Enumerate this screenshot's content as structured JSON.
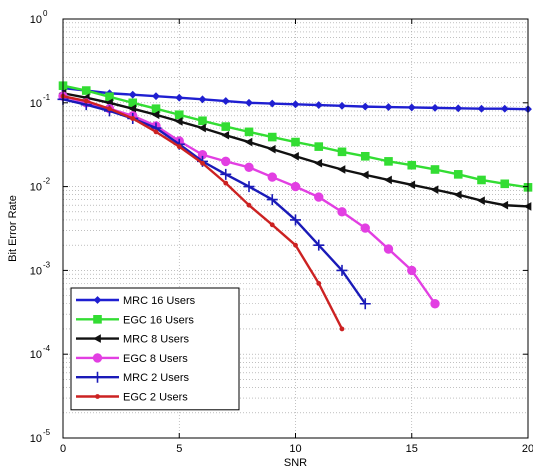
{
  "chart_data": {
    "type": "line",
    "xlabel": "SNR",
    "ylabel": "Bit Error Rate",
    "xlim": [
      0,
      20
    ],
    "ylim": [
      1e-05,
      1
    ],
    "yscale": "log",
    "grid": true,
    "minor_grid": true,
    "legend_position": "bottom-left",
    "x_ticks": [
      "0",
      "5",
      "10",
      "15",
      "20"
    ],
    "y_ticks": [
      {
        "value": 1,
        "base": "10",
        "exp": "0"
      },
      {
        "value": 0.1,
        "base": "10",
        "exp": "-1"
      },
      {
        "value": 0.01,
        "base": "10",
        "exp": "-2"
      },
      {
        "value": 0.001,
        "base": "10",
        "exp": "-3"
      },
      {
        "value": 0.0001,
        "base": "10",
        "exp": "-4"
      },
      {
        "value": 1e-05,
        "base": "10",
        "exp": "-5"
      }
    ],
    "series": [
      {
        "name": "MRC 16 Users",
        "color": "#1f1fd1",
        "marker": "diamond",
        "x": [
          0,
          1,
          2,
          3,
          4,
          5,
          6,
          7,
          8,
          9,
          10,
          11,
          12,
          13,
          14,
          15,
          16,
          17,
          18,
          19,
          20
        ],
        "y": [
          0.15,
          0.14,
          0.13,
          0.125,
          0.12,
          0.115,
          0.11,
          0.105,
          0.1,
          0.098,
          0.096,
          0.094,
          0.092,
          0.09,
          0.089,
          0.088,
          0.087,
          0.086,
          0.085,
          0.085,
          0.084
        ]
      },
      {
        "name": "EGC 16 Users",
        "color": "#33dd33",
        "marker": "square",
        "x": [
          0,
          1,
          2,
          3,
          4,
          5,
          6,
          7,
          8,
          9,
          10,
          11,
          12,
          13,
          14,
          15,
          16,
          17,
          18,
          19,
          20
        ],
        "y": [
          0.16,
          0.14,
          0.118,
          0.1,
          0.085,
          0.072,
          0.061,
          0.052,
          0.045,
          0.039,
          0.034,
          0.03,
          0.026,
          0.023,
          0.02,
          0.018,
          0.016,
          0.014,
          0.012,
          0.0108,
          0.0098
        ]
      },
      {
        "name": "MRC 8 Users",
        "color": "#111111",
        "marker": "triangle-left",
        "x": [
          0,
          1,
          2,
          3,
          4,
          5,
          6,
          7,
          8,
          9,
          10,
          11,
          12,
          13,
          14,
          15,
          16,
          17,
          18,
          19,
          20
        ],
        "y": [
          0.13,
          0.115,
          0.1,
          0.085,
          0.072,
          0.06,
          0.05,
          0.041,
          0.034,
          0.028,
          0.023,
          0.019,
          0.016,
          0.0138,
          0.012,
          0.0105,
          0.0092,
          0.008,
          0.0068,
          0.006,
          0.0058
        ]
      },
      {
        "name": "EGC 8 Users",
        "color": "#e23fe2",
        "marker": "circle",
        "x": [
          0,
          1,
          2,
          3,
          4,
          5,
          6,
          7,
          8,
          9,
          10,
          11,
          12,
          13,
          14,
          15,
          16
        ],
        "y": [
          0.12,
          0.1,
          0.085,
          0.07,
          0.053,
          0.035,
          0.024,
          0.02,
          0.017,
          0.013,
          0.01,
          0.0075,
          0.005,
          0.0032,
          0.0018,
          0.001,
          0.0004
        ]
      },
      {
        "name": "MRC 2 Users",
        "color": "#1a1ab8",
        "marker": "plus",
        "x": [
          0,
          1,
          2,
          3,
          4,
          5,
          6,
          7,
          8,
          9,
          10,
          11,
          12,
          13
        ],
        "y": [
          0.11,
          0.095,
          0.08,
          0.065,
          0.05,
          0.032,
          0.02,
          0.014,
          0.01,
          0.007,
          0.004,
          0.002,
          0.001,
          0.0004
        ]
      },
      {
        "name": "EGC 2 Users",
        "color": "#cc2222",
        "marker": "dot",
        "x": [
          0,
          1,
          2,
          3,
          4,
          5,
          6,
          7,
          8,
          9,
          10,
          11,
          12
        ],
        "y": [
          0.12,
          0.105,
          0.085,
          0.065,
          0.045,
          0.03,
          0.019,
          0.011,
          0.006,
          0.0035,
          0.002,
          0.0007,
          0.0002
        ]
      }
    ]
  }
}
